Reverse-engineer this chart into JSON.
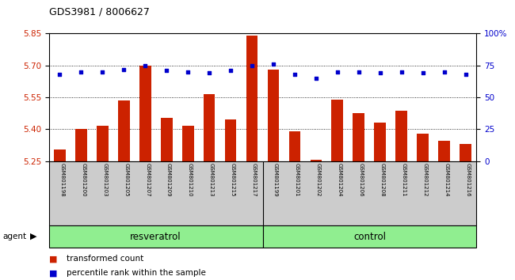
{
  "title": "GDS3981 / 8006627",
  "samples": [
    "GSM801198",
    "GSM801200",
    "GSM801203",
    "GSM801205",
    "GSM801207",
    "GSM801209",
    "GSM801210",
    "GSM801213",
    "GSM801215",
    "GSM801217",
    "GSM801199",
    "GSM801201",
    "GSM801202",
    "GSM801204",
    "GSM801206",
    "GSM801208",
    "GSM801211",
    "GSM801212",
    "GSM801214",
    "GSM801216"
  ],
  "bar_values": [
    5.305,
    5.4,
    5.415,
    5.535,
    5.7,
    5.455,
    5.415,
    5.565,
    5.445,
    5.84,
    5.68,
    5.39,
    5.255,
    5.54,
    5.475,
    5.43,
    5.485,
    5.38,
    5.345,
    5.33
  ],
  "percentile_values": [
    68,
    70,
    70,
    72,
    75,
    71,
    70,
    69,
    71,
    75,
    76,
    68,
    65,
    70,
    70,
    69,
    70,
    69,
    70,
    68
  ],
  "groups": [
    {
      "label": "resveratrol",
      "start": 0,
      "end": 10,
      "color": "#90ee90"
    },
    {
      "label": "control",
      "start": 10,
      "end": 20,
      "color": "#90ee90"
    }
  ],
  "ylim_left": [
    5.25,
    5.85
  ],
  "ylim_right": [
    0,
    100
  ],
  "yticks_left": [
    5.25,
    5.4,
    5.55,
    5.7,
    5.85
  ],
  "yticks_right": [
    0,
    25,
    50,
    75,
    100
  ],
  "bar_color": "#cc2200",
  "dot_color": "#0000cc",
  "tick_label_area_color": "#cccccc"
}
